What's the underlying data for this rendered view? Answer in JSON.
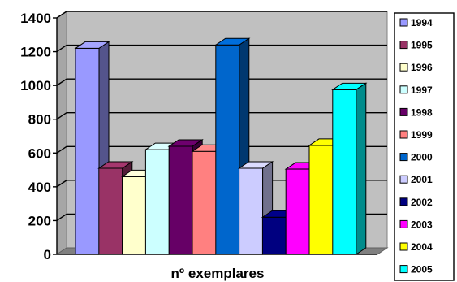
{
  "chart_data": {
    "type": "bar",
    "style": "3d-clustered-column",
    "categories": [
      "nº exemplares"
    ],
    "xlabel": "nº exemplares",
    "ylim": [
      0,
      1400
    ],
    "yticks": [
      "0",
      "200",
      "400",
      "600",
      "800",
      "1000",
      "1200",
      "1400"
    ],
    "grid": true,
    "legend_position": "right",
    "plot_background": "#c0c0c0",
    "series": [
      {
        "name": "1994",
        "values": [
          1220
        ],
        "color": "#9999ff"
      },
      {
        "name": "1995",
        "values": [
          510
        ],
        "color": "#993366"
      },
      {
        "name": "1996",
        "values": [
          460
        ],
        "color": "#ffffcc"
      },
      {
        "name": "1997",
        "values": [
          620
        ],
        "color": "#ccffff"
      },
      {
        "name": "1998",
        "values": [
          640
        ],
        "color": "#660066"
      },
      {
        "name": "1999",
        "values": [
          610
        ],
        "color": "#ff8080"
      },
      {
        "name": "2000",
        "values": [
          1240
        ],
        "color": "#0066cc"
      },
      {
        "name": "2001",
        "values": [
          510
        ],
        "color": "#ccccff"
      },
      {
        "name": "2002",
        "values": [
          220
        ],
        "color": "#000080"
      },
      {
        "name": "2003",
        "values": [
          505
        ],
        "color": "#ff00ff"
      },
      {
        "name": "2004",
        "values": [
          645
        ],
        "color": "#ffff00"
      },
      {
        "name": "2005",
        "values": [
          975
        ],
        "color": "#00ffff"
      }
    ]
  }
}
